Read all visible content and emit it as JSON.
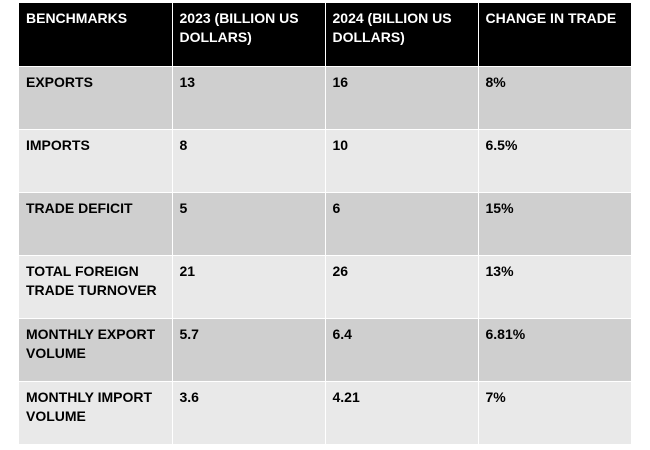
{
  "chart_data": {
    "type": "table",
    "columns": [
      "BENCHMARKS",
      "2023 (BILLION US DOLLARS)",
      "2024 (BILLION US DOLLARS)",
      "CHANGE IN TRADE"
    ],
    "rows": [
      [
        "EXPORTS",
        "13",
        "16",
        "8%"
      ],
      [
        "IMPORTS",
        "8",
        "10",
        "6.5%"
      ],
      [
        "TRADE DEFICIT",
        "5",
        "6",
        "15%"
      ],
      [
        "TOTAL FOREIGN TRADE TURNOVER",
        "21",
        "26",
        "13%"
      ],
      [
        "MONTHLY EXPORT VOLUME",
        "5.7",
        "6.4",
        "6.81%"
      ],
      [
        "MONTHLY IMPORT VOLUME",
        "3.6",
        "4.21",
        "7%"
      ]
    ]
  },
  "colors": {
    "header_background": "#000000",
    "header_text": "#ffffff",
    "row_band_dark": "#cfcfcf",
    "row_band_light": "#e9e9e9",
    "cell_border": "#ffffff"
  }
}
